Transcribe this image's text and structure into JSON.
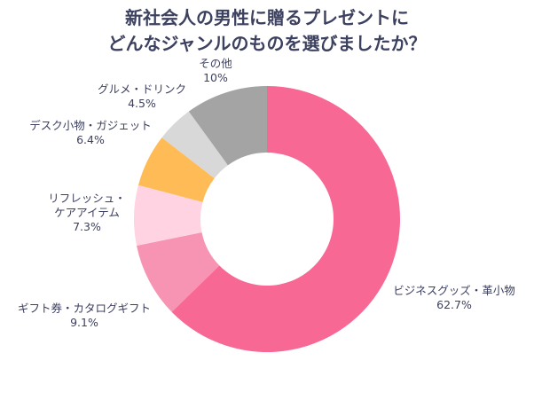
{
  "chart_data": {
    "type": "pie",
    "donut": true,
    "title_lines": [
      "新社会人の男性に贈るプレゼントに",
      "どんなジャンルのものを選びましたか？"
    ],
    "start": "top",
    "direction": "clockwise",
    "slices": [
      {
        "label_lines": [
          "ビジネスグッズ・革小物"
        ],
        "value": 62.7,
        "value_label": "62.7%",
        "color": "#f76895"
      },
      {
        "label_lines": [
          "ギフト券・カタログギフト"
        ],
        "value": 9.1,
        "value_label": "9.1%",
        "color": "#f794b3"
      },
      {
        "label_lines": [
          "リフレッシュ・",
          "ケアアイテム"
        ],
        "value": 7.3,
        "value_label": "7.3%",
        "color": "#ffd3e2"
      },
      {
        "label_lines": [
          "デスク小物・ガジェット"
        ],
        "value": 6.4,
        "value_label": "6.4%",
        "color": "#ffbb55"
      },
      {
        "label_lines": [
          "グルメ・ドリンク"
        ],
        "value": 4.5,
        "value_label": "4.5%",
        "color": "#d8d8d8"
      },
      {
        "label_lines": [
          "その他"
        ],
        "value": 10,
        "value_label": "10%",
        "color": "#a4a4a4"
      }
    ]
  }
}
